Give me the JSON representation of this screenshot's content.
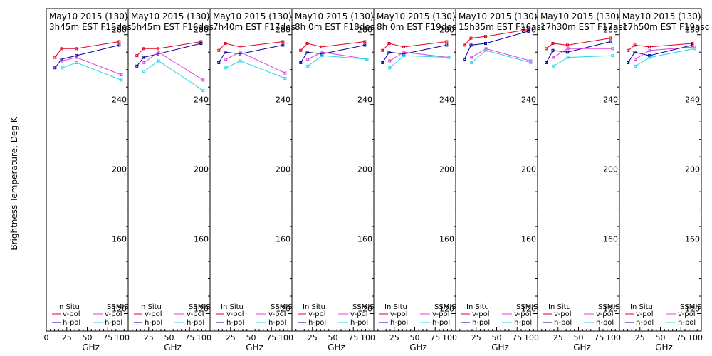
{
  "chart_data": {
    "type": "line",
    "ylabel": "Brightness Temperature, Deg K",
    "xlabel": "GHz",
    "ylim": [
      110,
      295
    ],
    "xlim": [
      0,
      100
    ],
    "y_ticks": [
      120,
      160,
      200,
      240,
      280
    ],
    "x_ticks": [
      0,
      25,
      50,
      75,
      100
    ],
    "x_tick_labels_first": [
      "0",
      "25",
      "50",
      "75",
      "100"
    ],
    "x_tick_labels": [
      "25",
      "50",
      "75",
      "100"
    ],
    "x_minor_ticks": [
      5,
      10,
      15,
      20,
      30,
      35,
      40,
      45,
      55,
      60,
      65,
      70,
      80,
      85,
      90,
      95
    ],
    "series_styles": [
      {
        "key": "insitu_v",
        "color": "#e0001e"
      },
      {
        "key": "insitu_h",
        "color": "#00009c"
      },
      {
        "key": "ssmis_v",
        "color": "#e040e0"
      },
      {
        "key": "ssmis_h",
        "color": "#29d4e4"
      }
    ],
    "legend": {
      "insitu_title": "In Situ",
      "ssmis_title": "SSMIS",
      "vpol": "v-pol",
      "hpol": "h-pol"
    },
    "panels": [
      {
        "title1": "May10 2015 (130)",
        "title2": "3h45m  EST  F15des",
        "insitu_v": {
          "x": [
            10.7,
            18.7,
            36.5,
            89.0
          ],
          "y": [
            267,
            272,
            272,
            276
          ]
        },
        "insitu_h": {
          "x": [
            10.7,
            18.7,
            36.5,
            89.0
          ],
          "y": [
            261,
            266,
            268,
            274
          ]
        },
        "ssmis_v": {
          "x": [
            19.35,
            37.0,
            91.65
          ],
          "y": [
            265,
            267,
            257
          ]
        },
        "ssmis_h": {
          "x": [
            19.35,
            37.0,
            91.65
          ],
          "y": [
            261,
            264,
            254
          ]
        }
      },
      {
        "title1": "May10 2015 (130)",
        "title2": "5h45m  EST  F16des",
        "insitu_v": {
          "x": [
            10.7,
            18.7,
            36.5,
            89.0
          ],
          "y": [
            268,
            272,
            272,
            276
          ]
        },
        "insitu_h": {
          "x": [
            10.7,
            18.7,
            36.5,
            89.0
          ],
          "y": [
            262,
            267,
            269,
            275
          ]
        },
        "ssmis_v": {
          "x": [
            19.35,
            37.0,
            91.65
          ],
          "y": [
            264,
            270,
            254
          ]
        },
        "ssmis_h": {
          "x": [
            19.35,
            37.0,
            91.65
          ],
          "y": [
            259,
            265,
            248
          ]
        }
      },
      {
        "title1": "May10 2015 (130)",
        "title2": "7h40m  EST  F17des",
        "insitu_v": {
          "x": [
            10.7,
            18.7,
            36.5,
            89.0
          ],
          "y": [
            271,
            275,
            273,
            276
          ]
        },
        "insitu_h": {
          "x": [
            10.7,
            18.7,
            36.5,
            89.0
          ],
          "y": [
            264,
            270,
            269,
            274
          ]
        },
        "ssmis_v": {
          "x": [
            19.35,
            37.0,
            91.65
          ],
          "y": [
            266,
            270,
            258
          ]
        },
        "ssmis_h": {
          "x": [
            19.35,
            37.0,
            91.65
          ],
          "y": [
            261,
            265,
            255
          ]
        }
      },
      {
        "title1": "May10 2015 (130)",
        "title2": "8h  0m  EST  F18des",
        "insitu_v": {
          "x": [
            10.7,
            18.7,
            36.5,
            89.0
          ],
          "y": [
            271,
            275,
            273,
            276
          ]
        },
        "insitu_h": {
          "x": [
            10.7,
            18.7,
            36.5,
            89.0
          ],
          "y": [
            264,
            270,
            269,
            274
          ]
        },
        "ssmis_v": {
          "x": [
            19.35,
            37.0,
            91.65
          ],
          "y": [
            266,
            270,
            266
          ]
        },
        "ssmis_h": {
          "x": [
            19.35,
            37.0,
            91.65
          ],
          "y": [
            262,
            268,
            266
          ]
        }
      },
      {
        "title1": "May10 2015 (130)",
        "title2": "8h  0m  EST  F19des",
        "insitu_v": {
          "x": [
            10.7,
            18.7,
            36.5,
            89.0
          ],
          "y": [
            271,
            275,
            273,
            276
          ]
        },
        "insitu_h": {
          "x": [
            10.7,
            18.7,
            36.5,
            89.0
          ],
          "y": [
            264,
            270,
            269,
            274
          ]
        },
        "ssmis_v": {
          "x": [
            19.35,
            37.0,
            91.65
          ],
          "y": [
            265,
            270,
            267
          ]
        },
        "ssmis_h": {
          "x": [
            19.35,
            37.0,
            91.65
          ],
          "y": [
            261,
            268,
            267
          ]
        }
      },
      {
        "title1": "May10 2015 (130)",
        "title2": "15h35m  EST  F16asc",
        "insitu_v": {
          "x": [
            10.7,
            18.7,
            36.5,
            89.0
          ],
          "y": [
            274,
            278,
            279,
            283
          ]
        },
        "insitu_h": {
          "x": [
            10.7,
            18.7,
            36.5,
            89.0
          ],
          "y": [
            266,
            274,
            275,
            282
          ]
        },
        "ssmis_v": {
          "x": [
            19.35,
            37.0,
            91.65
          ],
          "y": [
            267,
            272,
            265
          ]
        },
        "ssmis_h": {
          "x": [
            19.35,
            37.0,
            91.65
          ],
          "y": [
            264,
            271,
            264
          ]
        }
      },
      {
        "title1": "May10 2015 (130)",
        "title2": "17h30m  EST  F17asc",
        "insitu_v": {
          "x": [
            10.7,
            18.7,
            36.5,
            89.0
          ],
          "y": [
            272,
            275,
            274,
            278
          ]
        },
        "insitu_h": {
          "x": [
            10.7,
            18.7,
            36.5,
            89.0
          ],
          "y": [
            264,
            271,
            270,
            276
          ]
        },
        "ssmis_v": {
          "x": [
            19.35,
            37.0,
            91.65
          ],
          "y": [
            267,
            272,
            272
          ]
        },
        "ssmis_h": {
          "x": [
            19.35,
            37.0,
            91.65
          ],
          "y": [
            262,
            267,
            268
          ]
        }
      },
      {
        "title1": "May10 2015 (130)",
        "title2": "17h50m  EST  F19asc",
        "insitu_v": {
          "x": [
            10.7,
            18.7,
            36.5,
            89.0
          ],
          "y": [
            271,
            274,
            273,
            275
          ]
        },
        "insitu_h": {
          "x": [
            10.7,
            18.7,
            36.5,
            89.0
          ],
          "y": [
            264,
            270,
            268,
            274
          ]
        },
        "ssmis_v": {
          "x": [
            19.35,
            37.0,
            91.65
          ],
          "y": [
            266,
            271,
            273
          ]
        },
        "ssmis_h": {
          "x": [
            19.35,
            37.0,
            91.65
          ],
          "y": [
            262,
            267,
            272
          ]
        }
      }
    ]
  }
}
